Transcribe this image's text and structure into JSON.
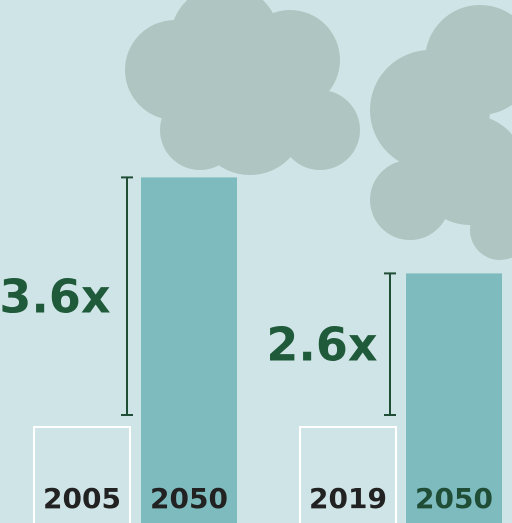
{
  "chart_data": [
    {
      "type": "bar",
      "categories": [
        "2005",
        "2050"
      ],
      "values": [
        1,
        3.6
      ],
      "annotation": "3.6x",
      "colors": [
        "none",
        "#6fb4b7"
      ],
      "label_colors": [
        "#222222",
        "#222222"
      ]
    },
    {
      "type": "bar",
      "categories": [
        "2019",
        "2050"
      ],
      "values": [
        1,
        2.6
      ],
      "annotation": "2.6x",
      "colors": [
        "none",
        "#6fb4b7"
      ],
      "label_colors": [
        "#222222",
        "#1f4d35"
      ]
    }
  ]
}
